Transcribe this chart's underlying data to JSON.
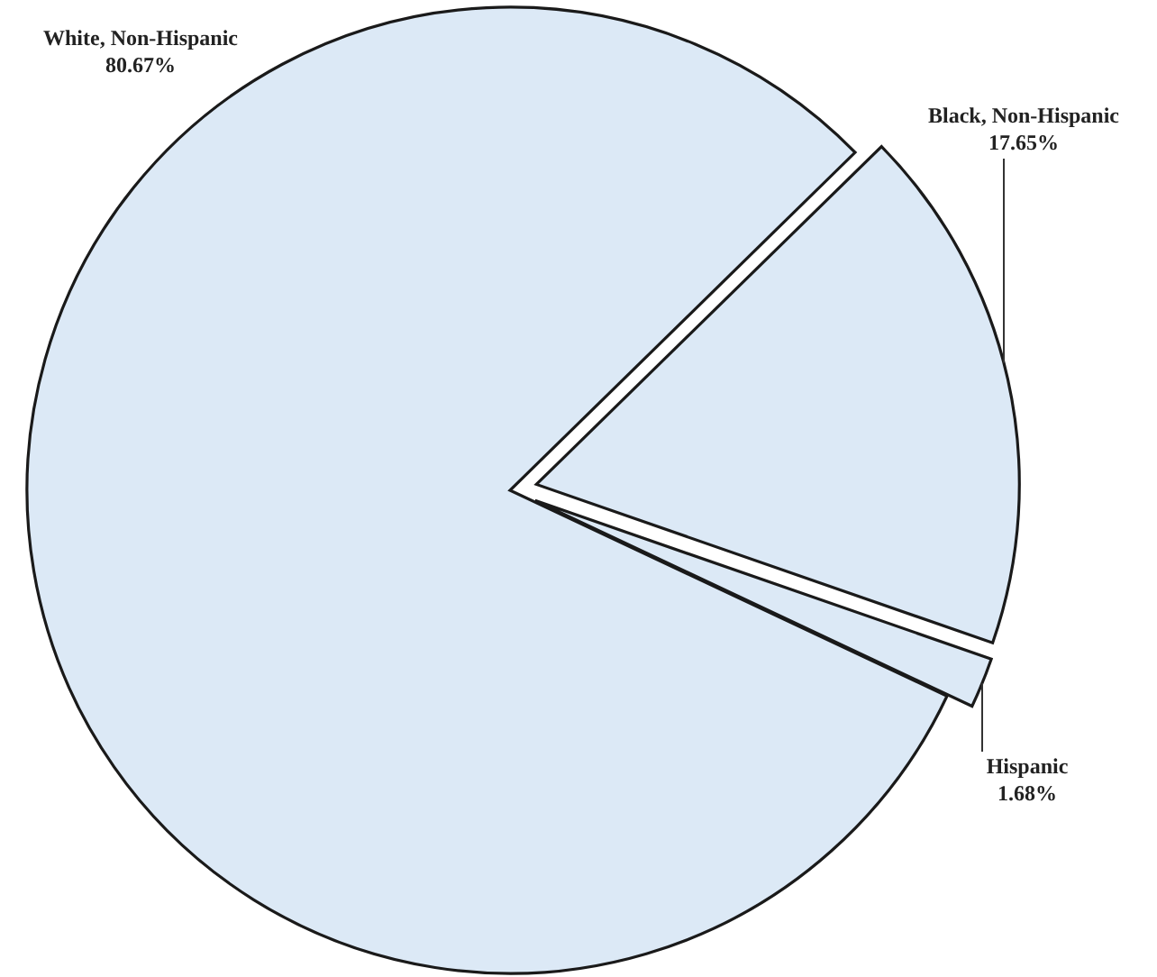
{
  "chart_data": {
    "type": "pie",
    "categories": [
      "White, Non-Hispanic",
      "Black, Non-Hispanic",
      "Hispanic"
    ],
    "values": [
      80.67,
      17.65,
      1.68
    ],
    "colors": [
      "#dce9f6",
      "#dce9f6",
      "#dce9f6"
    ],
    "value_labels": [
      "80.67%",
      "17.65%",
      "1.68%"
    ]
  }
}
